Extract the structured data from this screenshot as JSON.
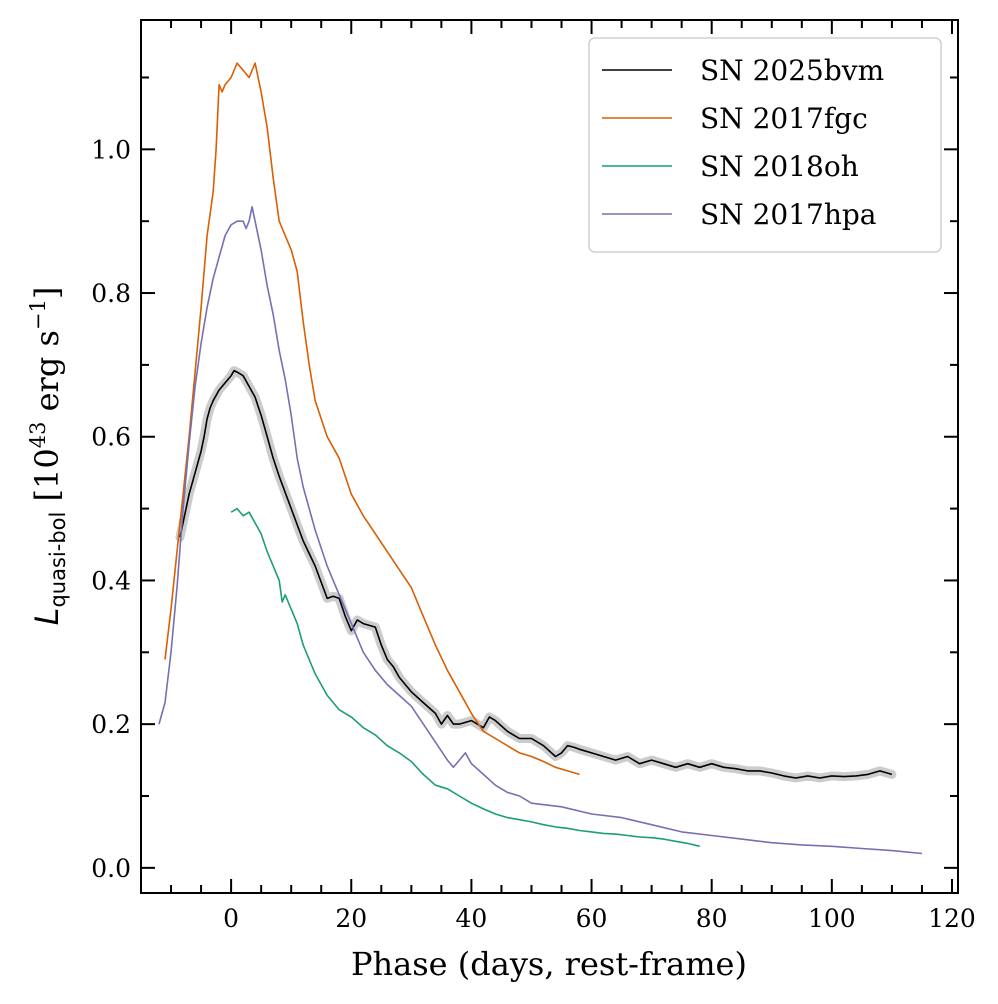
{
  "chart_data": {
    "type": "line",
    "xlabel": "Phase (days, rest-frame)",
    "ylabel": {
      "main": "L",
      "subscript": "quasi-bol",
      "units_open": " [10",
      "units_exp": "43",
      "units_mid": " erg s",
      "units_exp2": "−1",
      "units_close": "]"
    },
    "xlim": [
      -15,
      121
    ],
    "ylim": [
      -0.035,
      1.18
    ],
    "xticks": [
      0,
      20,
      40,
      60,
      80,
      100,
      120
    ],
    "xtick_labels": [
      "0",
      "20",
      "40",
      "60",
      "80",
      "100",
      "120"
    ],
    "yticks": [
      0.0,
      0.2,
      0.4,
      0.6,
      0.8,
      1.0
    ],
    "ytick_labels": [
      "0.0",
      "0.2",
      "0.4",
      "0.6",
      "0.8",
      "1.0"
    ],
    "grid": false,
    "legend_position": "top-right",
    "series": [
      {
        "name": "SN 2025bvm",
        "color": "#000000",
        "band_color": "#cccccc",
        "x": [
          -8.5,
          -7,
          -6,
          -5,
          -4.5,
          -4,
          -3.5,
          -3,
          -2,
          -1,
          0,
          0.5,
          1,
          2,
          3,
          4,
          5,
          6,
          7,
          8,
          10,
          12,
          14,
          16,
          17,
          18,
          19,
          20,
          21,
          22,
          24,
          25,
          26,
          27,
          28,
          30,
          32,
          34,
          35,
          36,
          37,
          38,
          40,
          42,
          43,
          44,
          46,
          48,
          50,
          52,
          54,
          55,
          56,
          57,
          58,
          60,
          62,
          64,
          66,
          68,
          70,
          72,
          74,
          76,
          78,
          80,
          82,
          84,
          86,
          88,
          90,
          92,
          94,
          96,
          98,
          100,
          102,
          104,
          106,
          108,
          110
        ],
        "y": [
          0.46,
          0.52,
          0.55,
          0.58,
          0.6,
          0.625,
          0.64,
          0.65,
          0.665,
          0.675,
          0.685,
          0.692,
          0.69,
          0.685,
          0.67,
          0.655,
          0.63,
          0.6,
          0.57,
          0.545,
          0.5,
          0.455,
          0.42,
          0.375,
          0.378,
          0.375,
          0.35,
          0.33,
          0.345,
          0.34,
          0.335,
          0.31,
          0.29,
          0.28,
          0.265,
          0.245,
          0.23,
          0.215,
          0.2,
          0.212,
          0.2,
          0.2,
          0.205,
          0.195,
          0.21,
          0.205,
          0.19,
          0.18,
          0.18,
          0.17,
          0.155,
          0.16,
          0.17,
          0.168,
          0.165,
          0.16,
          0.155,
          0.15,
          0.155,
          0.145,
          0.15,
          0.145,
          0.14,
          0.145,
          0.14,
          0.145,
          0.14,
          0.138,
          0.135,
          0.135,
          0.132,
          0.128,
          0.125,
          0.128,
          0.125,
          0.128,
          0.127,
          0.128,
          0.13,
          0.135,
          0.13
        ]
      },
      {
        "name": "SN 2017fgc",
        "color": "#d95f02",
        "x": [
          -11,
          -10,
          -9,
          -8,
          -7,
          -6,
          -5,
          -4,
          -3,
          -2.5,
          -2,
          -1.5,
          -1,
          0,
          1,
          2,
          3,
          4,
          5,
          6,
          7,
          8,
          10,
          11,
          12,
          13,
          14,
          16,
          18,
          20,
          22,
          24,
          26,
          28,
          30,
          32,
          34,
          36,
          38,
          40,
          42,
          44,
          46,
          48,
          50,
          52,
          54,
          56,
          58
        ],
        "y": [
          0.29,
          0.36,
          0.44,
          0.52,
          0.6,
          0.69,
          0.78,
          0.88,
          0.94,
          1.0,
          1.09,
          1.08,
          1.09,
          1.1,
          1.12,
          1.11,
          1.1,
          1.12,
          1.08,
          1.03,
          0.96,
          0.9,
          0.86,
          0.83,
          0.76,
          0.7,
          0.65,
          0.6,
          0.57,
          0.52,
          0.49,
          0.465,
          0.44,
          0.415,
          0.39,
          0.35,
          0.31,
          0.275,
          0.245,
          0.215,
          0.19,
          0.18,
          0.17,
          0.16,
          0.155,
          0.148,
          0.14,
          0.135,
          0.13
        ]
      },
      {
        "name": "SN 2018oh",
        "color": "#1b9e77",
        "x": [
          0,
          1,
          2,
          3,
          4,
          5,
          6,
          7,
          8,
          8.5,
          9,
          10,
          11,
          12,
          13,
          14,
          16,
          18,
          20,
          22,
          24,
          26,
          28,
          30,
          32,
          34,
          36,
          38,
          40,
          42,
          44,
          46,
          48,
          50,
          52,
          54,
          56,
          58,
          60,
          62,
          64,
          66,
          68,
          70,
          72,
          74,
          76,
          78
        ],
        "y": [
          0.495,
          0.5,
          0.49,
          0.495,
          0.48,
          0.465,
          0.44,
          0.42,
          0.4,
          0.37,
          0.38,
          0.36,
          0.34,
          0.31,
          0.29,
          0.27,
          0.24,
          0.22,
          0.21,
          0.195,
          0.185,
          0.17,
          0.16,
          0.148,
          0.13,
          0.115,
          0.11,
          0.1,
          0.09,
          0.082,
          0.075,
          0.07,
          0.067,
          0.064,
          0.06,
          0.057,
          0.055,
          0.052,
          0.05,
          0.048,
          0.047,
          0.045,
          0.043,
          0.042,
          0.04,
          0.037,
          0.034,
          0.03
        ]
      },
      {
        "name": "SN 2017hpa",
        "color": "#7570b3",
        "x": [
          -12,
          -11,
          -10,
          -9,
          -8,
          -7,
          -6,
          -5,
          -4,
          -3,
          -2,
          -1,
          0,
          1,
          2,
          2.5,
          3,
          3.5,
          4,
          5,
          6,
          7,
          8,
          9,
          10,
          11,
          12,
          13,
          14,
          16,
          18,
          20,
          22,
          24,
          26,
          28,
          30,
          32,
          34,
          36,
          37,
          38,
          39,
          40,
          42,
          44,
          46,
          48,
          50,
          55,
          60,
          65,
          70,
          75,
          80,
          85,
          90,
          95,
          100,
          105,
          110,
          115
        ],
        "y": [
          0.2,
          0.23,
          0.3,
          0.39,
          0.5,
          0.59,
          0.67,
          0.73,
          0.78,
          0.82,
          0.85,
          0.88,
          0.895,
          0.9,
          0.9,
          0.89,
          0.9,
          0.92,
          0.9,
          0.86,
          0.81,
          0.77,
          0.72,
          0.68,
          0.63,
          0.57,
          0.53,
          0.5,
          0.47,
          0.42,
          0.38,
          0.34,
          0.3,
          0.275,
          0.255,
          0.24,
          0.225,
          0.2,
          0.175,
          0.15,
          0.14,
          0.15,
          0.16,
          0.145,
          0.13,
          0.115,
          0.105,
          0.1,
          0.09,
          0.085,
          0.075,
          0.07,
          0.06,
          0.05,
          0.045,
          0.04,
          0.035,
          0.032,
          0.03,
          0.027,
          0.024,
          0.02
        ]
      }
    ]
  }
}
